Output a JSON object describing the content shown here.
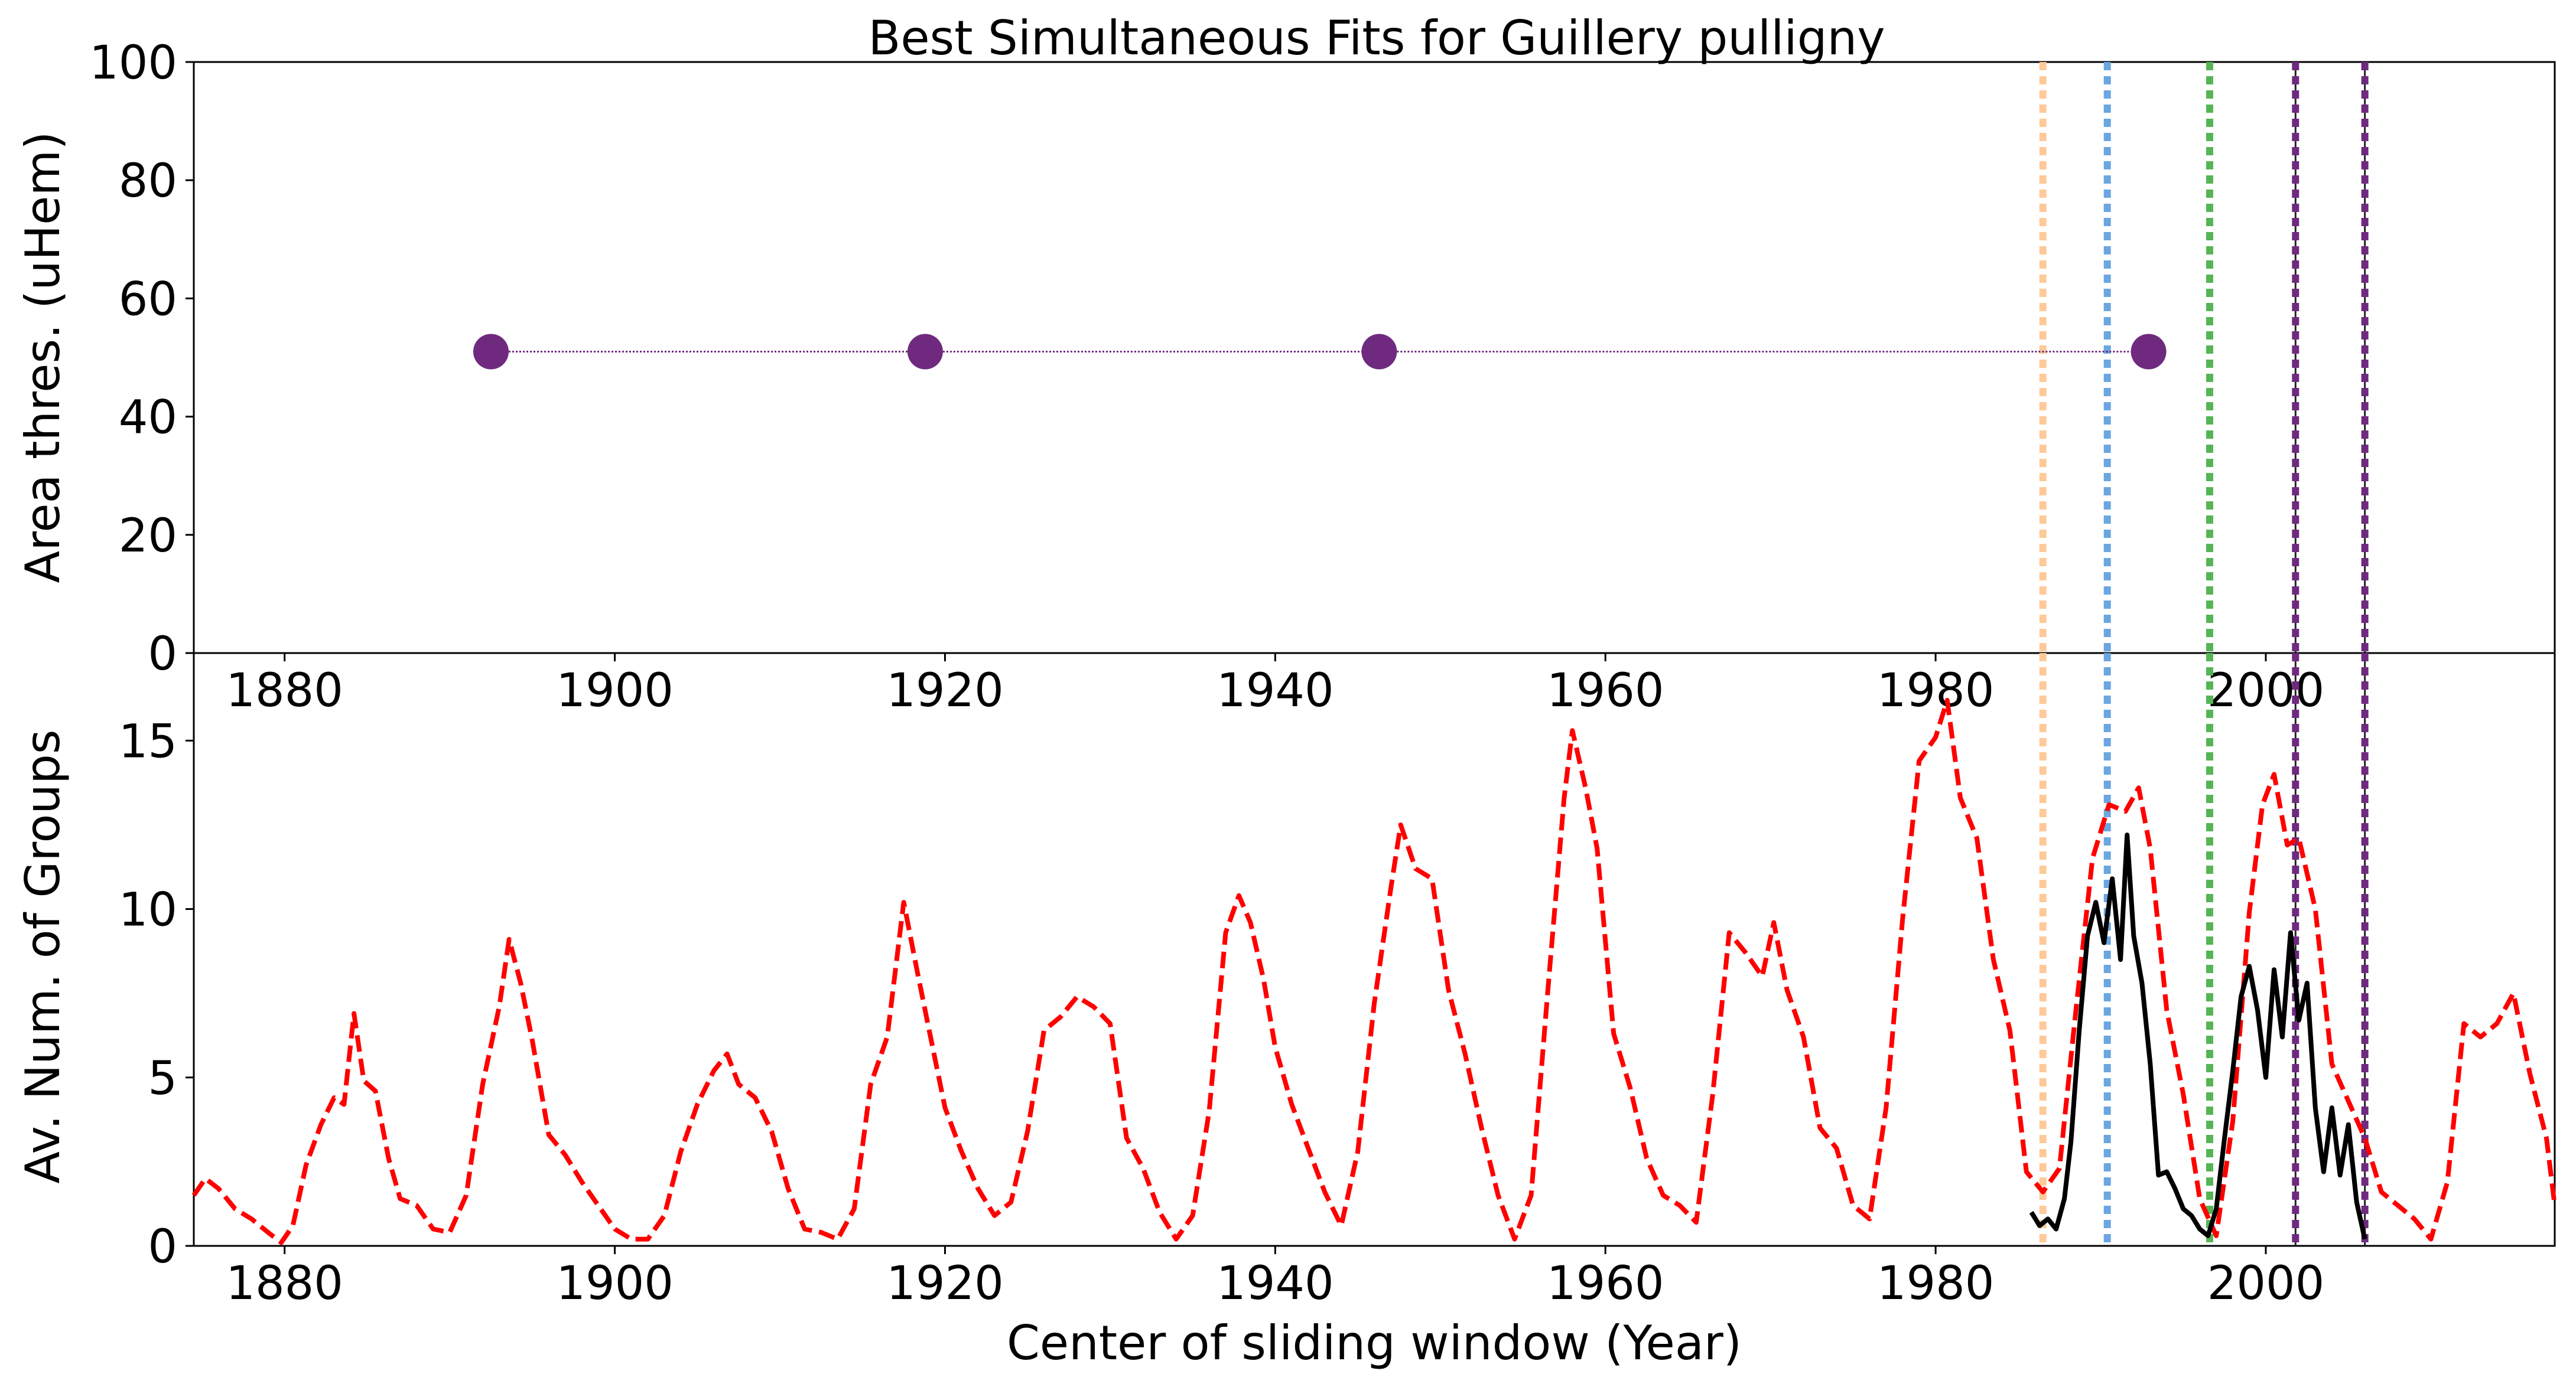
{
  "chart_data": [
    {
      "type": "scatter",
      "panel": "top",
      "title": "Best Simultaneous Fits for Guillery pulligny",
      "xlabel": "",
      "ylabel": "Area thres. (uHem)",
      "xlim": [
        1874.5,
        2017.5
      ],
      "ylim": [
        0,
        100
      ],
      "xticks": [
        1880,
        1900,
        1920,
        1940,
        1960,
        1980,
        2000
      ],
      "yticks": [
        0,
        20,
        40,
        60,
        80,
        100
      ],
      "grid": false,
      "points": [
        {
          "x": 1892.5,
          "y": 51
        },
        {
          "x": 1918.8,
          "y": 51
        },
        {
          "x": 1946.3,
          "y": 51
        },
        {
          "x": 1992.9,
          "y": 51
        }
      ],
      "point_color": "#6f2a7f",
      "vlines": [
        {
          "x": 1986.5,
          "color": "#ffc999"
        },
        {
          "x": 1990.4,
          "color": "#6ba6e0"
        },
        {
          "x": 1996.6,
          "color": "#55b555"
        },
        {
          "x": 2001.8,
          "color": "#6f2a7f"
        },
        {
          "x": 2006.0,
          "color": "#6f2a7f"
        }
      ]
    },
    {
      "type": "line",
      "panel": "bottom",
      "xlabel": "Center of sliding window (Year)",
      "ylabel": "Av. Num. of Groups",
      "xlim": [
        1874.5,
        2017.5
      ],
      "ylim": [
        0,
        17.6
      ],
      "xticks": [
        1880,
        1900,
        1920,
        1940,
        1960,
        1980,
        2000
      ],
      "yticks": [
        0,
        5,
        10,
        15
      ],
      "grid": false,
      "series": [
        {
          "name": "",
          "color": "#ff0000",
          "dash": "dashed",
          "points": [
            [
              1874.5,
              1.5
            ],
            [
              1875.2,
              2.0
            ],
            [
              1876.0,
              1.7
            ],
            [
              1877.0,
              1.1
            ],
            [
              1878.0,
              0.8
            ],
            [
              1879.0,
              0.4
            ],
            [
              1879.8,
              0.1
            ],
            [
              1880.5,
              0.6
            ],
            [
              1881.3,
              2.4
            ],
            [
              1882.2,
              3.6
            ],
            [
              1883.0,
              4.4
            ],
            [
              1883.6,
              4.2
            ],
            [
              1884.2,
              6.9
            ],
            [
              1884.8,
              4.9
            ],
            [
              1885.5,
              4.6
            ],
            [
              1886.3,
              2.6
            ],
            [
              1887.0,
              1.4
            ],
            [
              1888.0,
              1.2
            ],
            [
              1889.0,
              0.5
            ],
            [
              1890.0,
              0.4
            ],
            [
              1891.0,
              1.5
            ],
            [
              1892.0,
              4.8
            ],
            [
              1893.0,
              7.1
            ],
            [
              1893.6,
              9.1
            ],
            [
              1894.3,
              7.8
            ],
            [
              1895.0,
              6.1
            ],
            [
              1896.0,
              3.3
            ],
            [
              1897.0,
              2.7
            ],
            [
              1898.0,
              1.9
            ],
            [
              1899.0,
              1.2
            ],
            [
              1900.0,
              0.5
            ],
            [
              1901.0,
              0.2
            ],
            [
              1902.0,
              0.2
            ],
            [
              1903.0,
              0.9
            ],
            [
              1904.0,
              2.8
            ],
            [
              1905.0,
              4.2
            ],
            [
              1906.0,
              5.2
            ],
            [
              1906.8,
              5.7
            ],
            [
              1907.5,
              4.8
            ],
            [
              1908.5,
              4.4
            ],
            [
              1909.5,
              3.4
            ],
            [
              1910.5,
              1.7
            ],
            [
              1911.5,
              0.5
            ],
            [
              1912.5,
              0.4
            ],
            [
              1913.5,
              0.2
            ],
            [
              1914.5,
              1.1
            ],
            [
              1915.5,
              4.8
            ],
            [
              1916.5,
              6.2
            ],
            [
              1917.5,
              10.2
            ],
            [
              1918.3,
              8.2
            ],
            [
              1919.0,
              6.5
            ],
            [
              1920.0,
              4.1
            ],
            [
              1921.0,
              2.8
            ],
            [
              1922.0,
              1.7
            ],
            [
              1923.0,
              0.9
            ],
            [
              1924.0,
              1.3
            ],
            [
              1925.0,
              3.4
            ],
            [
              1926.0,
              6.4
            ],
            [
              1927.0,
              6.8
            ],
            [
              1928.0,
              7.4
            ],
            [
              1929.0,
              7.1
            ],
            [
              1930.0,
              6.6
            ],
            [
              1931.0,
              3.2
            ],
            [
              1932.0,
              2.3
            ],
            [
              1933.0,
              1.0
            ],
            [
              1934.0,
              0.2
            ],
            [
              1935.0,
              0.9
            ],
            [
              1936.0,
              4.0
            ],
            [
              1937.0,
              9.3
            ],
            [
              1937.8,
              10.4
            ],
            [
              1938.5,
              9.6
            ],
            [
              1939.3,
              7.9
            ],
            [
              1940.0,
              5.9
            ],
            [
              1941.0,
              4.2
            ],
            [
              1942.0,
              2.9
            ],
            [
              1943.0,
              1.6
            ],
            [
              1944.0,
              0.6
            ],
            [
              1945.0,
              2.8
            ],
            [
              1946.0,
              7.2
            ],
            [
              1947.0,
              10.6
            ],
            [
              1947.6,
              12.5
            ],
            [
              1948.5,
              11.2
            ],
            [
              1949.5,
              10.9
            ],
            [
              1950.5,
              7.6
            ],
            [
              1951.5,
              5.7
            ],
            [
              1952.5,
              3.5
            ],
            [
              1953.5,
              1.5
            ],
            [
              1954.5,
              0.2
            ],
            [
              1955.5,
              1.5
            ],
            [
              1956.5,
              7.5
            ],
            [
              1957.5,
              13.3
            ],
            [
              1958.0,
              15.3
            ],
            [
              1958.8,
              13.6
            ],
            [
              1959.5,
              11.8
            ],
            [
              1960.5,
              6.3
            ],
            [
              1961.5,
              4.7
            ],
            [
              1962.5,
              2.6
            ],
            [
              1963.5,
              1.5
            ],
            [
              1964.5,
              1.2
            ],
            [
              1965.5,
              0.7
            ],
            [
              1966.5,
              4.5
            ],
            [
              1967.5,
              9.3
            ],
            [
              1968.5,
              8.7
            ],
            [
              1969.5,
              8.0
            ],
            [
              1970.2,
              9.6
            ],
            [
              1971.0,
              7.6
            ],
            [
              1972.0,
              6.2
            ],
            [
              1973.0,
              3.5
            ],
            [
              1974.0,
              2.9
            ],
            [
              1975.0,
              1.2
            ],
            [
              1976.0,
              0.8
            ],
            [
              1977.0,
              4.1
            ],
            [
              1978.0,
              9.7
            ],
            [
              1979.0,
              14.4
            ],
            [
              1980.0,
              15.1
            ],
            [
              1980.7,
              16.2
            ],
            [
              1981.5,
              13.3
            ],
            [
              1982.5,
              12.1
            ],
            [
              1983.5,
              8.5
            ],
            [
              1984.5,
              6.4
            ],
            [
              1985.5,
              2.2
            ],
            [
              1986.5,
              1.6
            ],
            [
              1987.5,
              2.3
            ],
            [
              1988.5,
              7.0
            ],
            [
              1989.5,
              11.5
            ],
            [
              1990.5,
              13.1
            ],
            [
              1991.5,
              12.9
            ],
            [
              1992.3,
              13.6
            ],
            [
              1993.0,
              11.8
            ],
            [
              1994.0,
              7.0
            ],
            [
              1995.0,
              4.5
            ],
            [
              1996.0,
              1.4
            ],
            [
              1997.0,
              0.3
            ],
            [
              1998.0,
              3.7
            ],
            [
              1999.0,
              9.9
            ],
            [
              1999.8,
              13.1
            ],
            [
              2000.5,
              14.0
            ],
            [
              2001.3,
              11.9
            ],
            [
              2002.0,
              12.1
            ],
            [
              2003.0,
              10.0
            ],
            [
              2004.0,
              5.4
            ],
            [
              2005.0,
              4.3
            ],
            [
              2006.0,
              3.2
            ],
            [
              2007.0,
              1.6
            ],
            [
              2008.0,
              1.2
            ],
            [
              2009.0,
              0.8
            ],
            [
              2010.0,
              0.2
            ],
            [
              2011.0,
              1.9
            ],
            [
              2012.0,
              6.6
            ],
            [
              2013.0,
              6.2
            ],
            [
              2014.0,
              6.6
            ],
            [
              2015.0,
              7.5
            ],
            [
              2016.0,
              5.1
            ],
            [
              2017.0,
              3.2
            ],
            [
              2017.5,
              1.2
            ]
          ]
        },
        {
          "name": "",
          "color": "#000000",
          "dash": "solid",
          "points": [
            [
              1985.8,
              1.0
            ],
            [
              1986.3,
              0.6
            ],
            [
              1986.8,
              0.8
            ],
            [
              1987.3,
              0.5
            ],
            [
              1987.8,
              1.4
            ],
            [
              1988.2,
              3.1
            ],
            [
              1988.7,
              6.4
            ],
            [
              1989.2,
              9.2
            ],
            [
              1989.7,
              10.2
            ],
            [
              1990.2,
              9.0
            ],
            [
              1990.7,
              10.9
            ],
            [
              1991.2,
              8.5
            ],
            [
              1991.6,
              12.2
            ],
            [
              1992.0,
              9.2
            ],
            [
              1992.5,
              7.8
            ],
            [
              1993.0,
              5.4
            ],
            [
              1993.5,
              2.1
            ],
            [
              1994.0,
              2.2
            ],
            [
              1994.5,
              1.7
            ],
            [
              1995.0,
              1.1
            ],
            [
              1995.5,
              0.9
            ],
            [
              1996.0,
              0.5
            ],
            [
              1996.5,
              0.3
            ],
            [
              1997.0,
              1.1
            ],
            [
              1997.5,
              3.2
            ],
            [
              1998.0,
              5.2
            ],
            [
              1998.5,
              7.4
            ],
            [
              1999.0,
              8.3
            ],
            [
              1999.5,
              7.0
            ],
            [
              2000.0,
              5.0
            ],
            [
              2000.5,
              8.2
            ],
            [
              2001.0,
              6.2
            ],
            [
              2001.5,
              9.3
            ],
            [
              2002.0,
              6.7
            ],
            [
              2002.5,
              7.8
            ],
            [
              2003.0,
              4.1
            ],
            [
              2003.5,
              2.2
            ],
            [
              2004.0,
              4.1
            ],
            [
              2004.5,
              2.1
            ],
            [
              2005.0,
              3.6
            ],
            [
              2005.5,
              1.3
            ],
            [
              2006.0,
              0.2
            ]
          ]
        }
      ],
      "vlines": [
        {
          "x": 1986.5,
          "color": "#ffc999"
        },
        {
          "x": 1990.4,
          "color": "#6ba6e0"
        },
        {
          "x": 1996.6,
          "color": "#55b555"
        },
        {
          "x": 2001.8,
          "color": "#6f2a7f"
        },
        {
          "x": 2006.0,
          "color": "#6f2a7f"
        }
      ]
    }
  ]
}
